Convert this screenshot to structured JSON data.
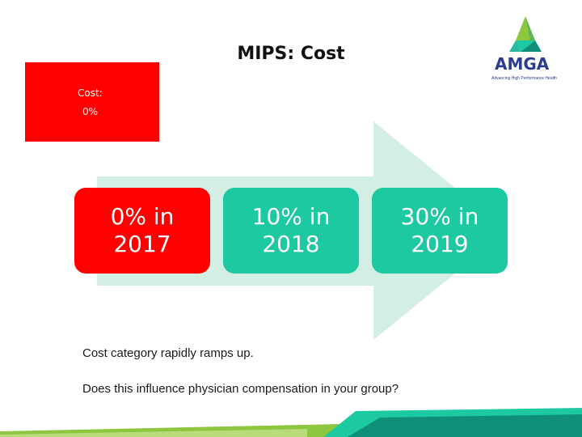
{
  "slide": {
    "title": "MIPS: Cost"
  },
  "logo": {
    "name": "AMGA",
    "tagline": "Advancing High Performance Health",
    "colors": [
      "#2b3d8f",
      "#1cc9a0",
      "#8dc63f",
      "#0f8f7a"
    ]
  },
  "cost_box": {
    "label": "Cost:",
    "value": "0%",
    "color": "#ff0000"
  },
  "steps": [
    {
      "text": "0% in 2017",
      "color": "#ff0000"
    },
    {
      "text": "10% in 2018",
      "color": "#1cc9a0"
    },
    {
      "text": "30% in 2019",
      "color": "#1cc9a0"
    }
  ],
  "arrow": {
    "color": "#d3eee2"
  },
  "notes": [
    "Cost category rapidly ramps up.",
    "Does this influence physician compensation in your group?"
  ]
}
